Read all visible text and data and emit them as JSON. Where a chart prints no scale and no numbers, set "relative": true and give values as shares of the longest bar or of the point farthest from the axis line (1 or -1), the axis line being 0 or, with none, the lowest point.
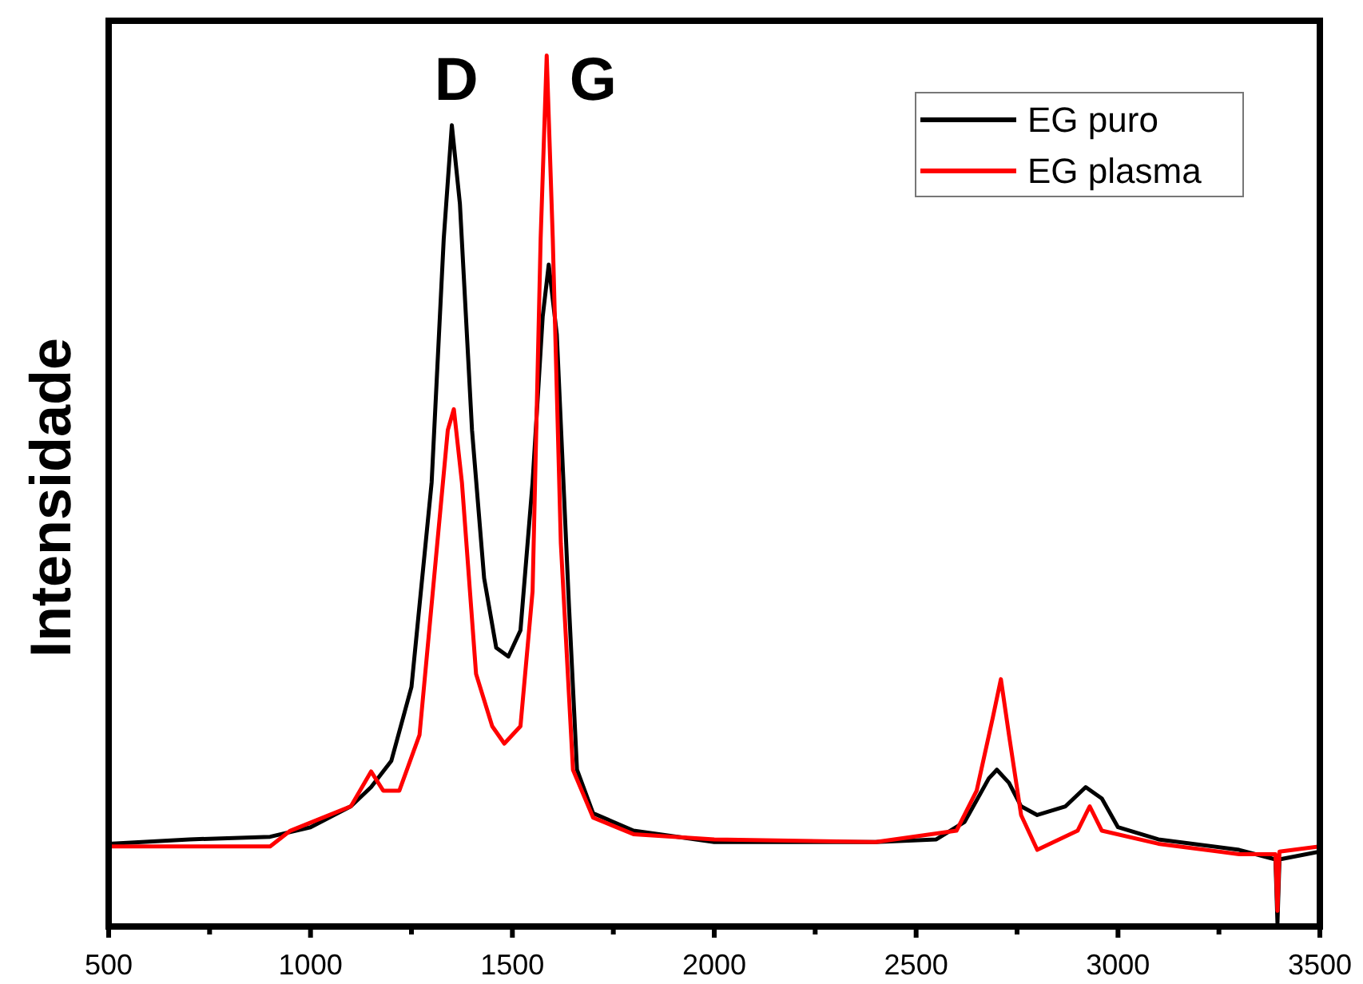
{
  "chart_data": {
    "type": "line",
    "ylabel": "Intensidade",
    "relative": true,
    "legend": "top right",
    "line_style": "solid",
    "marker": "none",
    "grid": false,
    "xlim": [
      500,
      3500
    ],
    "xticks": [
      500,
      {
        "value": 750,
        "label": null
      },
      1000,
      {
        "value": 1250,
        "label": null
      },
      1500,
      {
        "value": 1750,
        "label": null
      },
      2000,
      {
        "value": 2250,
        "label": null
      },
      2500,
      {
        "value": 2750,
        "label": null
      },
      3000,
      {
        "value": 3250,
        "label": null
      },
      3500
    ],
    "annotations": [
      "D",
      "G"
    ],
    "series": [
      {
        "name": "EG puro",
        "color": "#000000",
        "x": [
          500,
          700,
          900,
          1000,
          1100,
          1150,
          1200,
          1250,
          1300,
          1330,
          1350,
          1370,
          1400,
          1430,
          1460,
          1490,
          1520,
          1550,
          1575,
          1590,
          1610,
          1640,
          1660,
          1700,
          1800,
          2000,
          2200,
          2400,
          2550,
          2620,
          2680,
          2700,
          2730,
          2760,
          2800,
          2870,
          2920,
          2960,
          3000,
          3100,
          3300,
          3390,
          3395,
          3400,
          3500
        ],
        "values": [
          0.095,
          0.1,
          0.103,
          0.114,
          0.138,
          0.16,
          0.19,
          0.275,
          0.51,
          0.79,
          0.92,
          0.83,
          0.57,
          0.4,
          0.32,
          0.31,
          0.34,
          0.51,
          0.7,
          0.76,
          0.68,
          0.37,
          0.18,
          0.13,
          0.11,
          0.097,
          0.097,
          0.097,
          0.1,
          0.12,
          0.17,
          0.18,
          0.165,
          0.138,
          0.128,
          0.138,
          0.16,
          0.147,
          0.114,
          0.1,
          0.088,
          0.077,
          0.004,
          0.077,
          0.086
        ]
      },
      {
        "name": "EG plasma",
        "color": "#ff0000",
        "x": [
          500,
          900,
          950,
          1100,
          1150,
          1180,
          1220,
          1270,
          1310,
          1340,
          1355,
          1375,
          1410,
          1450,
          1480,
          1520,
          1550,
          1570,
          1585,
          1600,
          1620,
          1650,
          1700,
          1800,
          2000,
          2400,
          2600,
          2650,
          2690,
          2710,
          2730,
          2760,
          2800,
          2900,
          2930,
          2960,
          3100,
          3300,
          3390,
          3395,
          3400,
          3500
        ],
        "values": [
          0.092,
          0.092,
          0.11,
          0.138,
          0.178,
          0.156,
          0.156,
          0.22,
          0.42,
          0.57,
          0.594,
          0.51,
          0.29,
          0.23,
          0.21,
          0.23,
          0.385,
          0.79,
          1.0,
          0.79,
          0.44,
          0.18,
          0.125,
          0.106,
          0.1,
          0.097,
          0.11,
          0.156,
          0.24,
          0.284,
          0.22,
          0.128,
          0.088,
          0.11,
          0.138,
          0.11,
          0.095,
          0.083,
          0.083,
          0.018,
          0.086,
          0.092
        ]
      }
    ]
  }
}
